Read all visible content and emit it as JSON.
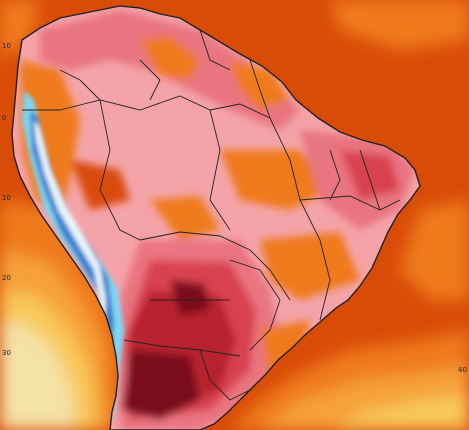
{
  "map": {
    "region": "South America",
    "colors": {
      "ocean_hot": "#d94c08",
      "ocean_warm": "#ef7a1c",
      "ocean_mild": "#f6a13a",
      "ocean_cool": "#f8c95a",
      "ocean_coolest": "#f4e2a6",
      "land_pink": "#f4a3a8",
      "land_rose": "#e97480",
      "land_red": "#d8434f",
      "land_crimson": "#b8232f",
      "land_darkest": "#7a0e1a",
      "andes_white": "#e8f4fb",
      "andes_cyan": "#7fd6f0",
      "andes_blue": "#3b7fd0",
      "border": "#222222"
    },
    "tick_labels": [
      "10",
      "0",
      "10",
      "20",
      "30",
      "40"
    ]
  }
}
